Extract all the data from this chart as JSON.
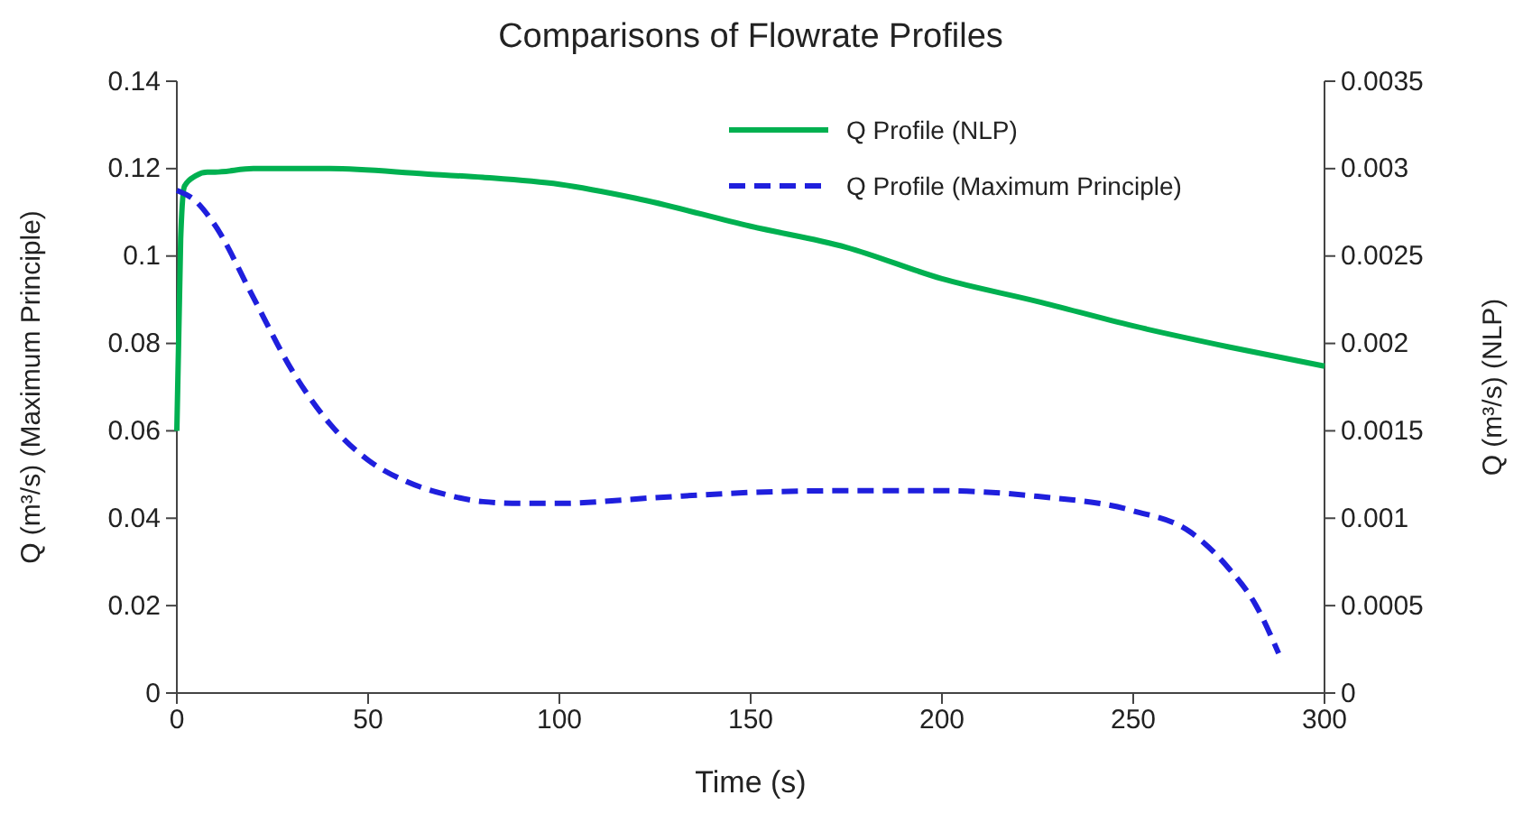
{
  "chart_data": {
    "type": "line",
    "title": "Comparisons of Flowrate Profiles",
    "xlabel": "Time (s)",
    "ylabel": "Q (m³/s) (Maximum Principle)",
    "y2label": "Q (m³/s) (NLP)",
    "xlim": [
      0,
      300
    ],
    "xticks": [
      0,
      50,
      100,
      150,
      200,
      250,
      300
    ],
    "ylim": [
      0,
      0.14
    ],
    "yticks": [
      0,
      0.02,
      0.04,
      0.06,
      0.08,
      0.1,
      0.12,
      0.14
    ],
    "y2lim": [
      0,
      0.0035
    ],
    "y2ticks": [
      0,
      0.0005,
      0.001,
      0.0015,
      0.002,
      0.0025,
      0.003,
      0.0035
    ],
    "grid": false,
    "legend": "top right",
    "marker": "none",
    "series": [
      {
        "name": "Q Profile (NLP)",
        "color": "#00b050",
        "axis": "y2",
        "line_style": "solid",
        "x": [
          0,
          1,
          2,
          5,
          8,
          10,
          20,
          40,
          65,
          80,
          100,
          120,
          150,
          175,
          200,
          225,
          250,
          275,
          300
        ],
        "values": [
          0.0015,
          0.0026,
          0.0029,
          0.00296,
          0.00298,
          0.00298,
          0.003,
          0.003,
          0.00297,
          0.00295,
          0.00291,
          0.00283,
          0.00267,
          0.00255,
          0.00237,
          0.00224,
          0.0021,
          0.00198,
          0.00187
        ]
      },
      {
        "name": "Q Profile (Maximum Principle)",
        "color": "#1f1fdd",
        "axis": "y",
        "line_style": "dashed",
        "x": [
          0,
          5,
          10,
          20,
          30,
          40,
          50,
          60,
          70,
          80,
          90,
          100,
          125,
          150,
          175,
          200,
          225,
          250,
          265,
          275,
          282,
          288
        ],
        "values": [
          0.115,
          0.1125,
          0.107,
          0.0905,
          0.074,
          0.0616,
          0.0533,
          0.0484,
          0.0455,
          0.0438,
          0.0434,
          0.0434,
          0.0447,
          0.0459,
          0.0463,
          0.0463,
          0.045,
          0.0417,
          0.0368,
          0.0285,
          0.0202,
          0.0091
        ]
      }
    ]
  }
}
